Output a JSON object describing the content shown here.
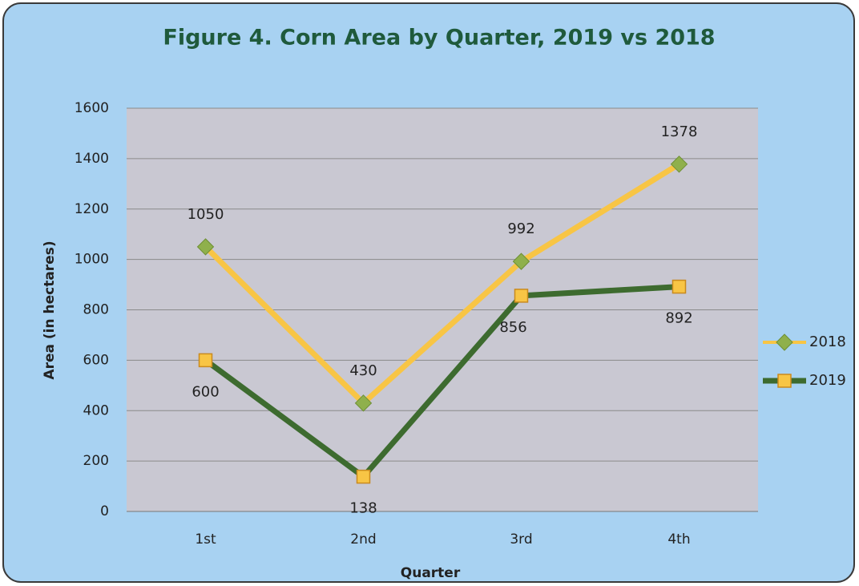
{
  "chart_data": {
    "type": "line",
    "title": "Figure 4. Corn Area by Quarter, 2019 vs 2018",
    "x_label": "Quarter",
    "y_label": "Area (in hectares)",
    "categories": [
      "1st",
      "2nd",
      "3rd",
      "4th"
    ],
    "series": [
      {
        "name": "2018",
        "color": "#f8c545",
        "marker_color": "#8fb04c",
        "values": [
          1050,
          430,
          992,
          1378
        ]
      },
      {
        "name": "2019",
        "color": "#3d6b2f",
        "marker_color": "#f8c545",
        "values": [
          600,
          138,
          856,
          892
        ]
      }
    ],
    "ylim": [
      0,
      1600
    ],
    "yticks": [
      0,
      200,
      400,
      600,
      800,
      1000,
      1200,
      1400,
      1600
    ],
    "grid": true,
    "legend": "right"
  }
}
